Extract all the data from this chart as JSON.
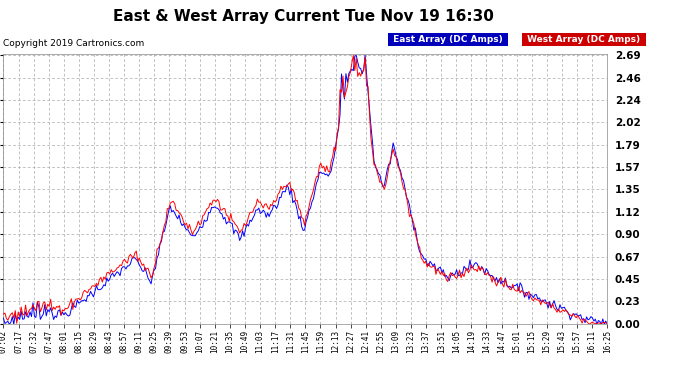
{
  "title": "East & West Array Current Tue Nov 19 16:30",
  "copyright": "Copyright 2019 Cartronics.com",
  "ylim": [
    0.0,
    2.69
  ],
  "yticks": [
    0.0,
    0.23,
    0.45,
    0.67,
    0.9,
    1.12,
    1.35,
    1.57,
    1.79,
    2.02,
    2.24,
    2.46,
    2.69
  ],
  "east_color": "#0000ff",
  "west_color": "#ff0000",
  "east_label": "East Array (DC Amps)",
  "west_label": "West Array (DC Amps)",
  "east_bg": "#0000bb",
  "west_bg": "#cc0000",
  "background_color": "#ffffff",
  "grid_color": "#aaaaaa",
  "x_labels": [
    "07:02",
    "07:17",
    "07:32",
    "07:47",
    "08:01",
    "08:15",
    "08:29",
    "08:43",
    "08:57",
    "09:11",
    "09:25",
    "09:39",
    "09:53",
    "10:07",
    "10:21",
    "10:35",
    "10:49",
    "11:03",
    "11:17",
    "11:31",
    "11:45",
    "11:59",
    "12:13",
    "12:27",
    "12:41",
    "12:55",
    "13:09",
    "13:23",
    "13:37",
    "13:51",
    "14:05",
    "14:19",
    "14:33",
    "14:47",
    "15:01",
    "15:15",
    "15:29",
    "15:43",
    "15:57",
    "16:11",
    "16:25"
  ],
  "n_points": 410
}
